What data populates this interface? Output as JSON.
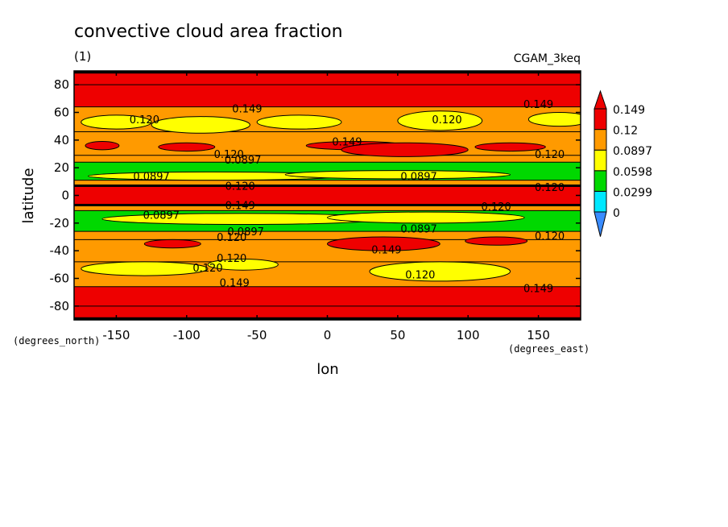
{
  "chart_data": {
    "type": "heatmap",
    "title": "convective cloud area fraction",
    "subtitle": "(1)",
    "run_label": "CGAM_3keq",
    "xlabel": "lon",
    "ylabel": "latitude",
    "x_units": "(degrees_east)",
    "y_units": "(degrees_north)",
    "xlim": [
      -180,
      180
    ],
    "ylim": [
      -90,
      90
    ],
    "x_ticks": [
      -150,
      -100,
      -50,
      0,
      50,
      100,
      150
    ],
    "y_ticks": [
      -80,
      -60,
      -40,
      -20,
      0,
      20,
      40,
      60,
      80
    ],
    "x_tick_labels": [
      "-150",
      "-100",
      "-50",
      "0",
      "50",
      "100",
      "150"
    ],
    "y_tick_labels": [
      "-80",
      "-60",
      "-40",
      "-20",
      "0",
      "20",
      "40",
      "60",
      "80"
    ],
    "colorbar": {
      "levels": [
        0,
        0.0299,
        0.0598,
        0.0897,
        0.12,
        0.149
      ],
      "labels": [
        "0",
        "0.0299",
        "0.0598",
        "0.0897",
        "0.12",
        "0.149"
      ],
      "colors": [
        "#3a8cff",
        "#00e8ff",
        "#00d800",
        "#ffff00",
        "#ff9a00",
        "#ee0000"
      ]
    },
    "bands": [
      {
        "lat_range": [
          80,
          90
        ],
        "level": 5
      },
      {
        "lat_range": [
          64,
          80
        ],
        "level": 5
      },
      {
        "lat_range": [
          46,
          64
        ],
        "level": 4
      },
      {
        "lat_range": [
          29,
          46
        ],
        "level": 4
      },
      {
        "lat_range": [
          24,
          29
        ],
        "level": 4
      },
      {
        "lat_range": [
          11,
          24
        ],
        "level": 2
      },
      {
        "lat_range": [
          7,
          11
        ],
        "level": 4
      },
      {
        "lat_range": [
          -7,
          7
        ],
        "level": 5
      },
      {
        "lat_range": [
          -11,
          -7
        ],
        "level": 4
      },
      {
        "lat_range": [
          -26,
          -11
        ],
        "level": 2
      },
      {
        "lat_range": [
          -32,
          -26
        ],
        "level": 4
      },
      {
        "lat_range": [
          -48,
          -32
        ],
        "level": 4
      },
      {
        "lat_range": [
          -66,
          -48
        ],
        "level": 4
      },
      {
        "lat_range": [
          -80,
          -66
        ],
        "level": 5
      },
      {
        "lat_range": [
          -90,
          -80
        ],
        "level": 5
      }
    ],
    "blobs": [
      {
        "lon": -150,
        "lat": 53,
        "rlon": 25,
        "rlat": 5,
        "level": 3
      },
      {
        "lon": -90,
        "lat": 51,
        "rlon": 35,
        "rlat": 6,
        "level": 3
      },
      {
        "lon": -20,
        "lat": 53,
        "rlon": 30,
        "rlat": 5,
        "level": 3
      },
      {
        "lon": 80,
        "lat": 54,
        "rlon": 30,
        "rlat": 7,
        "level": 3
      },
      {
        "lon": 165,
        "lat": 55,
        "rlon": 22,
        "rlat": 5,
        "level": 3
      },
      {
        "lon": -160,
        "lat": 36,
        "rlon": 12,
        "rlat": 3,
        "level": 5
      },
      {
        "lon": -100,
        "lat": 35,
        "rlon": 20,
        "rlat": 3,
        "level": 5
      },
      {
        "lon": 20,
        "lat": 36,
        "rlon": 35,
        "rlat": 3,
        "level": 5
      },
      {
        "lon": 55,
        "lat": 33,
        "rlon": 45,
        "rlat": 5,
        "level": 5
      },
      {
        "lon": 130,
        "lat": 35,
        "rlon": 25,
        "rlat": 3,
        "level": 5
      },
      {
        "lon": -80,
        "lat": 14,
        "rlon": 90,
        "rlat": 3,
        "level": 3
      },
      {
        "lon": 50,
        "lat": 15,
        "rlon": 80,
        "rlat": 3,
        "level": 3
      },
      {
        "lon": -60,
        "lat": -17,
        "rlon": 100,
        "rlat": 4,
        "level": 3
      },
      {
        "lon": 70,
        "lat": -16,
        "rlon": 70,
        "rlat": 4,
        "level": 3
      },
      {
        "lon": -110,
        "lat": -35,
        "rlon": 20,
        "rlat": 3,
        "level": 5
      },
      {
        "lon": 40,
        "lat": -35,
        "rlon": 40,
        "rlat": 5,
        "level": 5
      },
      {
        "lon": 120,
        "lat": -33,
        "rlon": 22,
        "rlat": 3,
        "level": 5
      },
      {
        "lon": -130,
        "lat": -53,
        "rlon": 45,
        "rlat": 5,
        "level": 3
      },
      {
        "lon": -60,
        "lat": -50,
        "rlon": 25,
        "rlat": 4,
        "level": 3
      },
      {
        "lon": 80,
        "lat": -55,
        "rlon": 50,
        "rlat": 7,
        "level": 3
      }
    ],
    "contour_labels": [
      {
        "text": "0.120",
        "lon": -130,
        "lat": 55
      },
      {
        "text": "0.149",
        "lon": -57,
        "lat": 63
      },
      {
        "text": "0.120",
        "lon": 85,
        "lat": 55
      },
      {
        "text": "0.149",
        "lon": 150,
        "lat": 66
      },
      {
        "text": "0.149",
        "lon": 14,
        "lat": 39
      },
      {
        "text": "0.120",
        "lon": -70,
        "lat": 30
      },
      {
        "text": "0.0897",
        "lon": -60,
        "lat": 26
      },
      {
        "text": "0.120",
        "lon": 158,
        "lat": 30
      },
      {
        "text": "0.0897",
        "lon": -125,
        "lat": 14
      },
      {
        "text": "0.0897",
        "lon": 65,
        "lat": 14
      },
      {
        "text": "0.120",
        "lon": -62,
        "lat": 7
      },
      {
        "text": "0.120",
        "lon": 158,
        "lat": 6
      },
      {
        "text": "0.120",
        "lon": 120,
        "lat": -8
      },
      {
        "text": "0.149",
        "lon": -62,
        "lat": -7
      },
      {
        "text": "0.0897",
        "lon": -118,
        "lat": -14
      },
      {
        "text": "0.0897",
        "lon": -58,
        "lat": -26
      },
      {
        "text": "0.0897",
        "lon": 65,
        "lat": -24
      },
      {
        "text": "0.120",
        "lon": -68,
        "lat": -30
      },
      {
        "text": "0.120",
        "lon": 158,
        "lat": -29
      },
      {
        "text": "0.149",
        "lon": 42,
        "lat": -39
      },
      {
        "text": "0.120",
        "lon": -68,
        "lat": -45
      },
      {
        "text": "0.120",
        "lon": -85,
        "lat": -52
      },
      {
        "text": "0.120",
        "lon": 66,
        "lat": -57
      },
      {
        "text": "0.149",
        "lon": -66,
        "lat": -63
      },
      {
        "text": "0.149",
        "lon": 150,
        "lat": -67
      }
    ]
  }
}
